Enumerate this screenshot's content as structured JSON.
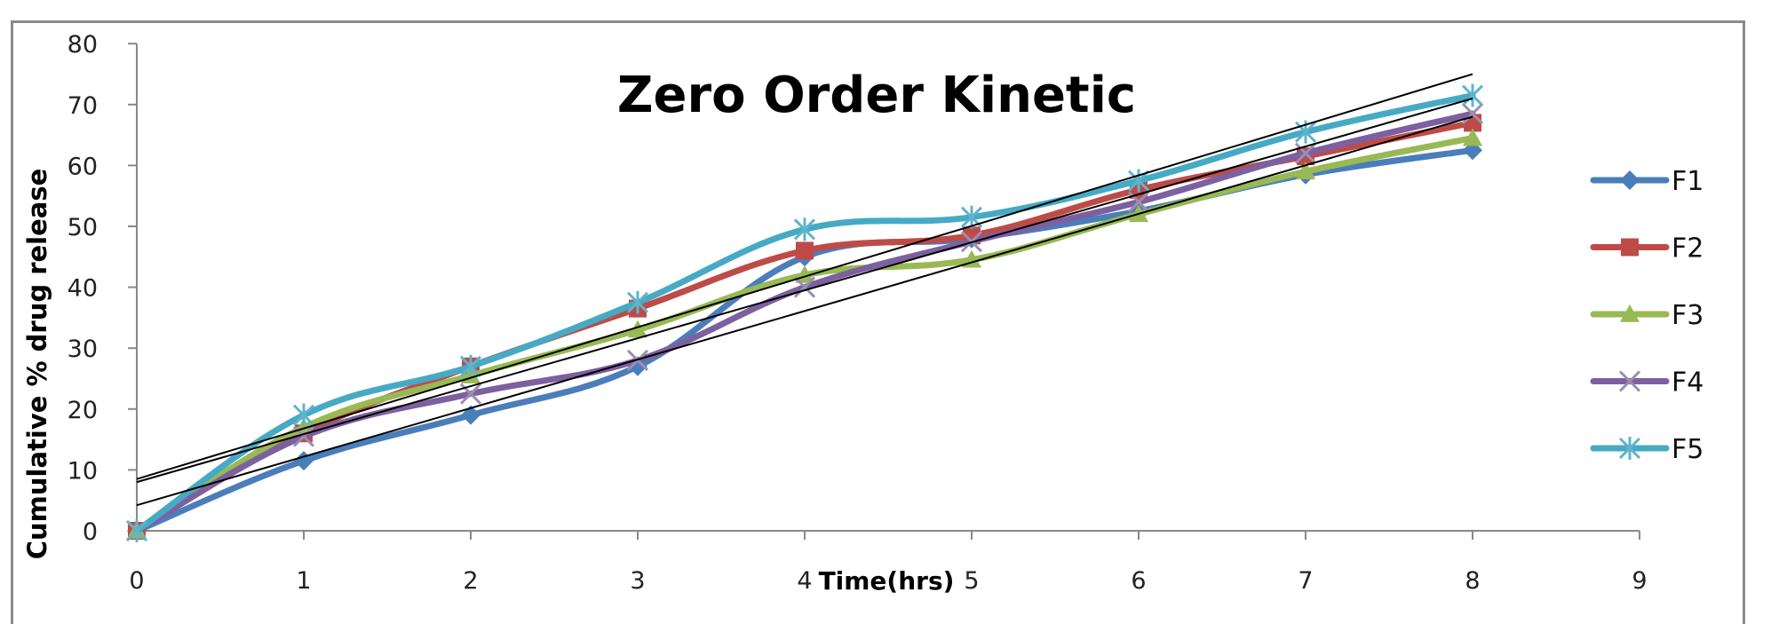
{
  "chart_data": {
    "type": "line",
    "title": "Zero Order Kinetic",
    "xlabel": "Time(hrs)",
    "ylabel": "Cumulative % drug release",
    "x": [
      0,
      1,
      2,
      3,
      4,
      5,
      6,
      7,
      8
    ],
    "xlim": [
      0,
      9
    ],
    "ylim": [
      0,
      80
    ],
    "x_ticks": [
      "0",
      "1",
      "2",
      "3",
      "4",
      "5",
      "6",
      "7",
      "8",
      "9"
    ],
    "y_ticks": [
      "0",
      "10",
      "20",
      "30",
      "40",
      "50",
      "60",
      "70",
      "80"
    ],
    "grid": false,
    "legend_position": "right",
    "series": [
      {
        "name": "F1",
        "color": "#4a7ebb",
        "marker": "diamond",
        "values": [
          0,
          11.5,
          19,
          27,
          45,
          48,
          52.5,
          58.5,
          62.5
        ]
      },
      {
        "name": "F2",
        "color": "#be4b48",
        "marker": "square",
        "values": [
          0,
          16,
          27,
          36.5,
          46,
          48.5,
          56,
          61.5,
          67
        ]
      },
      {
        "name": "F3",
        "color": "#98b954",
        "marker": "triangle",
        "values": [
          0,
          17,
          25.5,
          33,
          42,
          44.5,
          52,
          59,
          64.5
        ]
      },
      {
        "name": "F4",
        "color": "#7d60a0",
        "marker": "x",
        "values": [
          0,
          15.5,
          22.5,
          28,
          40,
          47.5,
          54,
          62,
          68.5
        ]
      },
      {
        "name": "F5",
        "color": "#46aac5",
        "marker": "star",
        "values": [
          0,
          19,
          27,
          37.5,
          49.5,
          51.5,
          57.5,
          65.5,
          71.5
        ]
      }
    ],
    "trendlines": [
      {
        "type": "linear",
        "color": "#000000",
        "x": [
          0,
          8
        ],
        "y": [
          8.5,
          75
        ]
      },
      {
        "type": "linear",
        "color": "#000000",
        "x": [
          0,
          8
        ],
        "y": [
          8.0,
          71
        ]
      },
      {
        "type": "linear",
        "color": "#000000",
        "x": [
          0,
          8
        ],
        "y": [
          4.2,
          68
        ]
      }
    ]
  }
}
